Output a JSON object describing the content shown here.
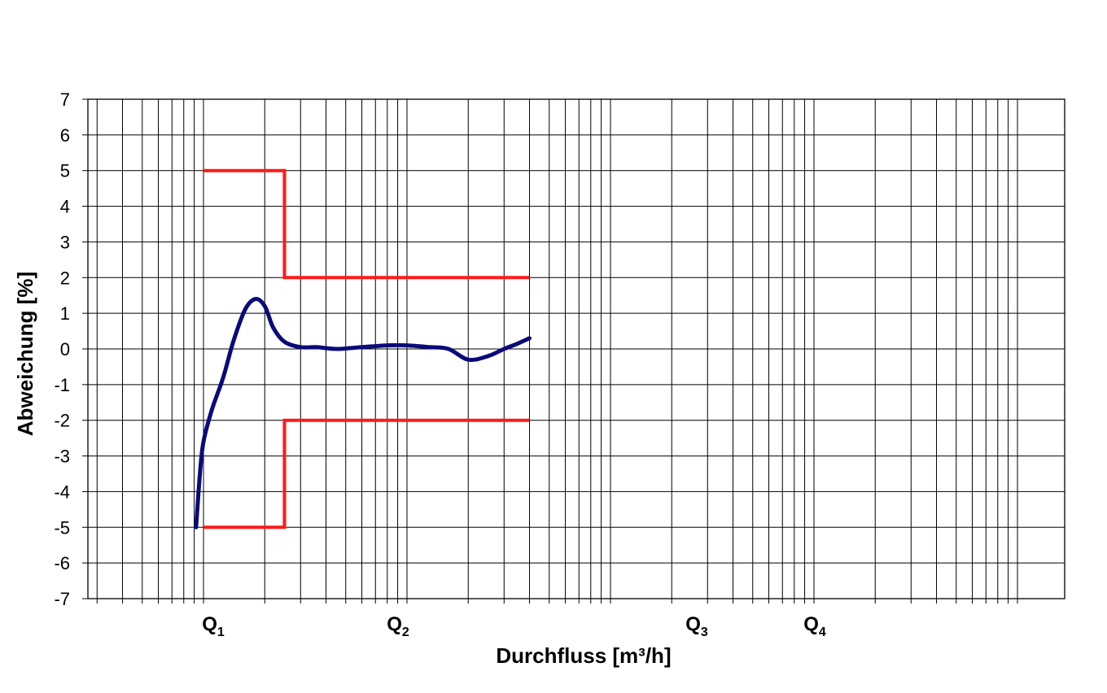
{
  "chart_data": {
    "type": "line",
    "title": "",
    "xlabel": "Durchfluss [m³/h]",
    "ylabel": "Abweichung [%]",
    "xscale": "log",
    "ylim": [
      -7,
      7
    ],
    "yticks": [
      7,
      6,
      5,
      4,
      3,
      2,
      1,
      0,
      -1,
      -2,
      -3,
      -4,
      -5,
      -6,
      -7
    ],
    "grid": true,
    "legend": "none",
    "xtick_labels": [
      {
        "main": "Q",
        "sub": "1"
      },
      {
        "main": "Q",
        "sub": "2"
      },
      {
        "main": "Q",
        "sub": "3"
      },
      {
        "main": "Q",
        "sub": "4"
      }
    ],
    "colors": {
      "measured": "#0a0a7a",
      "limits": "#ff1a1a",
      "grid": "#000000"
    },
    "limits": {
      "upper": [
        [
          1,
          5
        ],
        [
          2.5,
          5
        ],
        [
          2.5,
          2
        ],
        [
          40,
          2
        ]
      ],
      "lower": [
        [
          1,
          -5
        ],
        [
          2.5,
          -5
        ],
        [
          2.5,
          -2
        ],
        [
          40,
          -2
        ]
      ]
    },
    "series": [
      {
        "x": [
          0.92,
          0.96,
          1.0,
          1.1,
          1.25,
          1.4,
          1.6,
          1.8,
          2.0,
          2.2,
          2.5,
          3.0,
          3.6,
          4.5,
          6.0,
          8.0,
          10.0,
          13.0,
          16.0,
          20.0,
          25.0,
          30.0,
          35.0,
          40.0
        ],
        "y": [
          -5.0,
          -3.5,
          -2.6,
          -1.7,
          -0.8,
          0.2,
          1.1,
          1.4,
          1.2,
          0.6,
          0.2,
          0.05,
          0.05,
          0.0,
          0.05,
          0.1,
          0.1,
          0.05,
          0.0,
          -0.3,
          -0.2,
          0.0,
          0.15,
          0.3
        ]
      }
    ]
  }
}
